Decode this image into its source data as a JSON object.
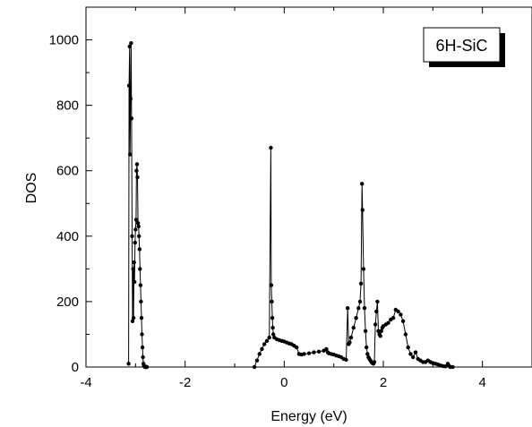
{
  "chart_data": {
    "type": "line",
    "xlabel": "Energy (eV)",
    "ylabel": "DOS",
    "xlim": [
      -4,
      5
    ],
    "ylim": [
      0,
      1100
    ],
    "x_ticks": [
      -4,
      -2,
      0,
      2,
      4
    ],
    "x_tick_labels": [
      "-4",
      "-2",
      "0",
      "2",
      "4"
    ],
    "y_ticks": [
      0,
      200,
      400,
      600,
      800,
      1000
    ],
    "y_tick_labels": [
      "0",
      "200",
      "400",
      "600",
      "800",
      "1000"
    ],
    "grid": false,
    "legend_position": "top-right",
    "annotation": "6H-SiC",
    "series": [
      {
        "color": "#000000",
        "x": [
          -3.14,
          -3.13,
          -3.12,
          -3.11,
          -3.1,
          -3.09,
          -3.08,
          -3.07,
          -3.06,
          -3.05,
          -3.04,
          -3.03,
          -3.02,
          -3.01,
          -3.0,
          -2.99,
          -2.98,
          -2.97,
          -2.96,
          -2.95,
          -2.94,
          -2.93,
          -2.92,
          -2.91,
          -2.9,
          -2.89,
          -2.88,
          -2.87,
          -2.86,
          -2.85,
          -2.84,
          -2.83,
          -2.82,
          -2.81,
          -2.8,
          -2.79,
          -2.78,
          -2.77,
          -0.6,
          -0.55,
          -0.5,
          -0.45,
          -0.4,
          -0.35,
          -0.3,
          -0.27,
          -0.26,
          -0.25,
          -0.24,
          -0.23,
          -0.22,
          -0.2,
          -0.15,
          -0.1,
          -0.05,
          0.0,
          0.05,
          0.1,
          0.15,
          0.2,
          0.25,
          0.3,
          0.35,
          0.4,
          0.5,
          0.6,
          0.7,
          0.8,
          0.85,
          0.88,
          0.9,
          0.95,
          1.0,
          1.05,
          1.1,
          1.15,
          1.2,
          1.25,
          1.28,
          1.3,
          1.32,
          1.35,
          1.4,
          1.45,
          1.5,
          1.53,
          1.55,
          1.57,
          1.58,
          1.6,
          1.62,
          1.64,
          1.66,
          1.68,
          1.7,
          1.72,
          1.74,
          1.76,
          1.78,
          1.8,
          1.82,
          1.84,
          1.86,
          1.88,
          1.9,
          1.92,
          1.94,
          1.96,
          1.98,
          2.0,
          2.05,
          2.1,
          2.15,
          2.2,
          2.25,
          2.3,
          2.35,
          2.4,
          2.45,
          2.5,
          2.55,
          2.6,
          2.65,
          2.7,
          2.75,
          2.8,
          2.85,
          2.9,
          2.95,
          3.0,
          3.05,
          3.1,
          3.15,
          3.2,
          3.25,
          3.3,
          3.32,
          3.35,
          3.4
        ],
        "y": [
          10,
          860,
          980,
          650,
          820,
          990,
          760,
          400,
          140,
          300,
          150,
          320,
          260,
          380,
          420,
          450,
          600,
          620,
          580,
          440,
          430,
          400,
          360,
          300,
          250,
          200,
          150,
          100,
          60,
          30,
          10,
          5,
          2,
          0,
          0,
          0,
          0,
          0,
          0,
          20,
          40,
          55,
          70,
          80,
          90,
          670,
          250,
          200,
          150,
          120,
          100,
          90,
          85,
          82,
          80,
          78,
          75,
          72,
          70,
          65,
          60,
          40,
          38,
          40,
          42,
          45,
          47,
          50,
          55,
          45,
          42,
          40,
          38,
          35,
          33,
          30,
          25,
          22,
          180,
          70,
          75,
          90,
          120,
          150,
          180,
          200,
          255,
          560,
          480,
          300,
          180,
          110,
          60,
          40,
          30,
          25,
          20,
          15,
          12,
          10,
          15,
          130,
          170,
          200,
          110,
          100,
          95,
          110,
          120,
          125,
          130,
          135,
          145,
          150,
          175,
          170,
          160,
          140,
          100,
          60,
          40,
          30,
          45,
          25,
          20,
          15,
          15,
          20,
          15,
          12,
          10,
          8,
          5,
          3,
          2,
          10,
          5,
          0,
          0
        ]
      }
    ]
  }
}
